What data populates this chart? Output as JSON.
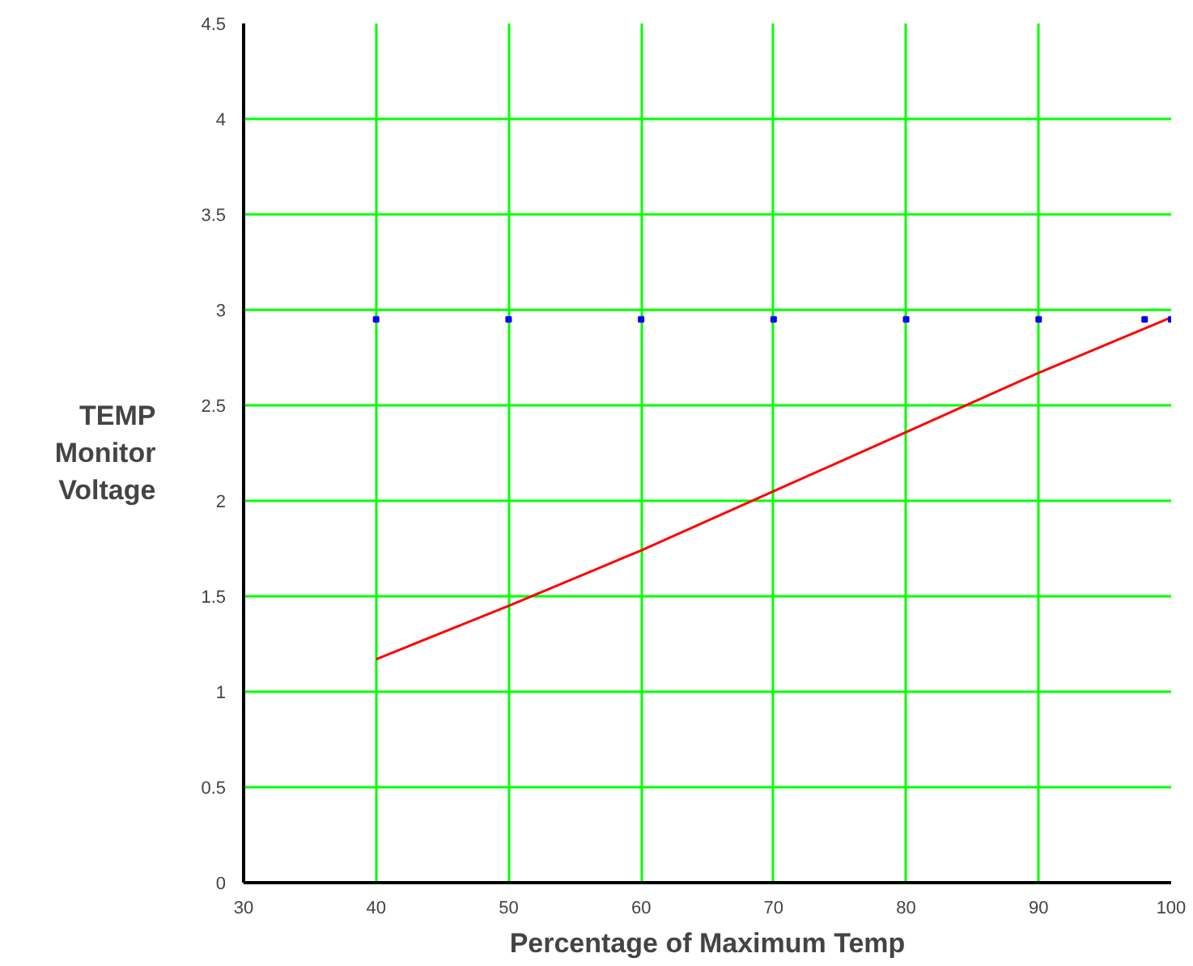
{
  "chart_data": {
    "type": "line",
    "xlabel": "Percentage of Maximum Temp",
    "ylabel": "TEMP Monitor Voltage",
    "x": [
      40,
      50,
      60,
      70,
      80,
      90,
      100
    ],
    "series": [
      {
        "color": "#ff0000",
        "values": [
          1.17,
          1.45,
          1.74,
          2.05,
          2.36,
          2.67,
          2.96
        ],
        "marker": "none"
      },
      {
        "type": "scatter",
        "color": "#0000ff",
        "x": [
          40,
          50,
          60,
          70,
          80,
          90,
          98,
          100
        ],
        "values": [
          2.95,
          2.95,
          2.95,
          2.95,
          2.95,
          2.95,
          2.95,
          2.95
        ],
        "marker": "square"
      }
    ],
    "xlim": [
      30,
      100
    ],
    "ylim": [
      0,
      4.5
    ],
    "xticks": [
      30,
      40,
      50,
      60,
      70,
      80,
      90,
      100
    ],
    "yticks": [
      0,
      0.5,
      1,
      1.5,
      2,
      2.5,
      3,
      3.5,
      4,
      4.5
    ],
    "grid": true,
    "line_style": "solid"
  }
}
